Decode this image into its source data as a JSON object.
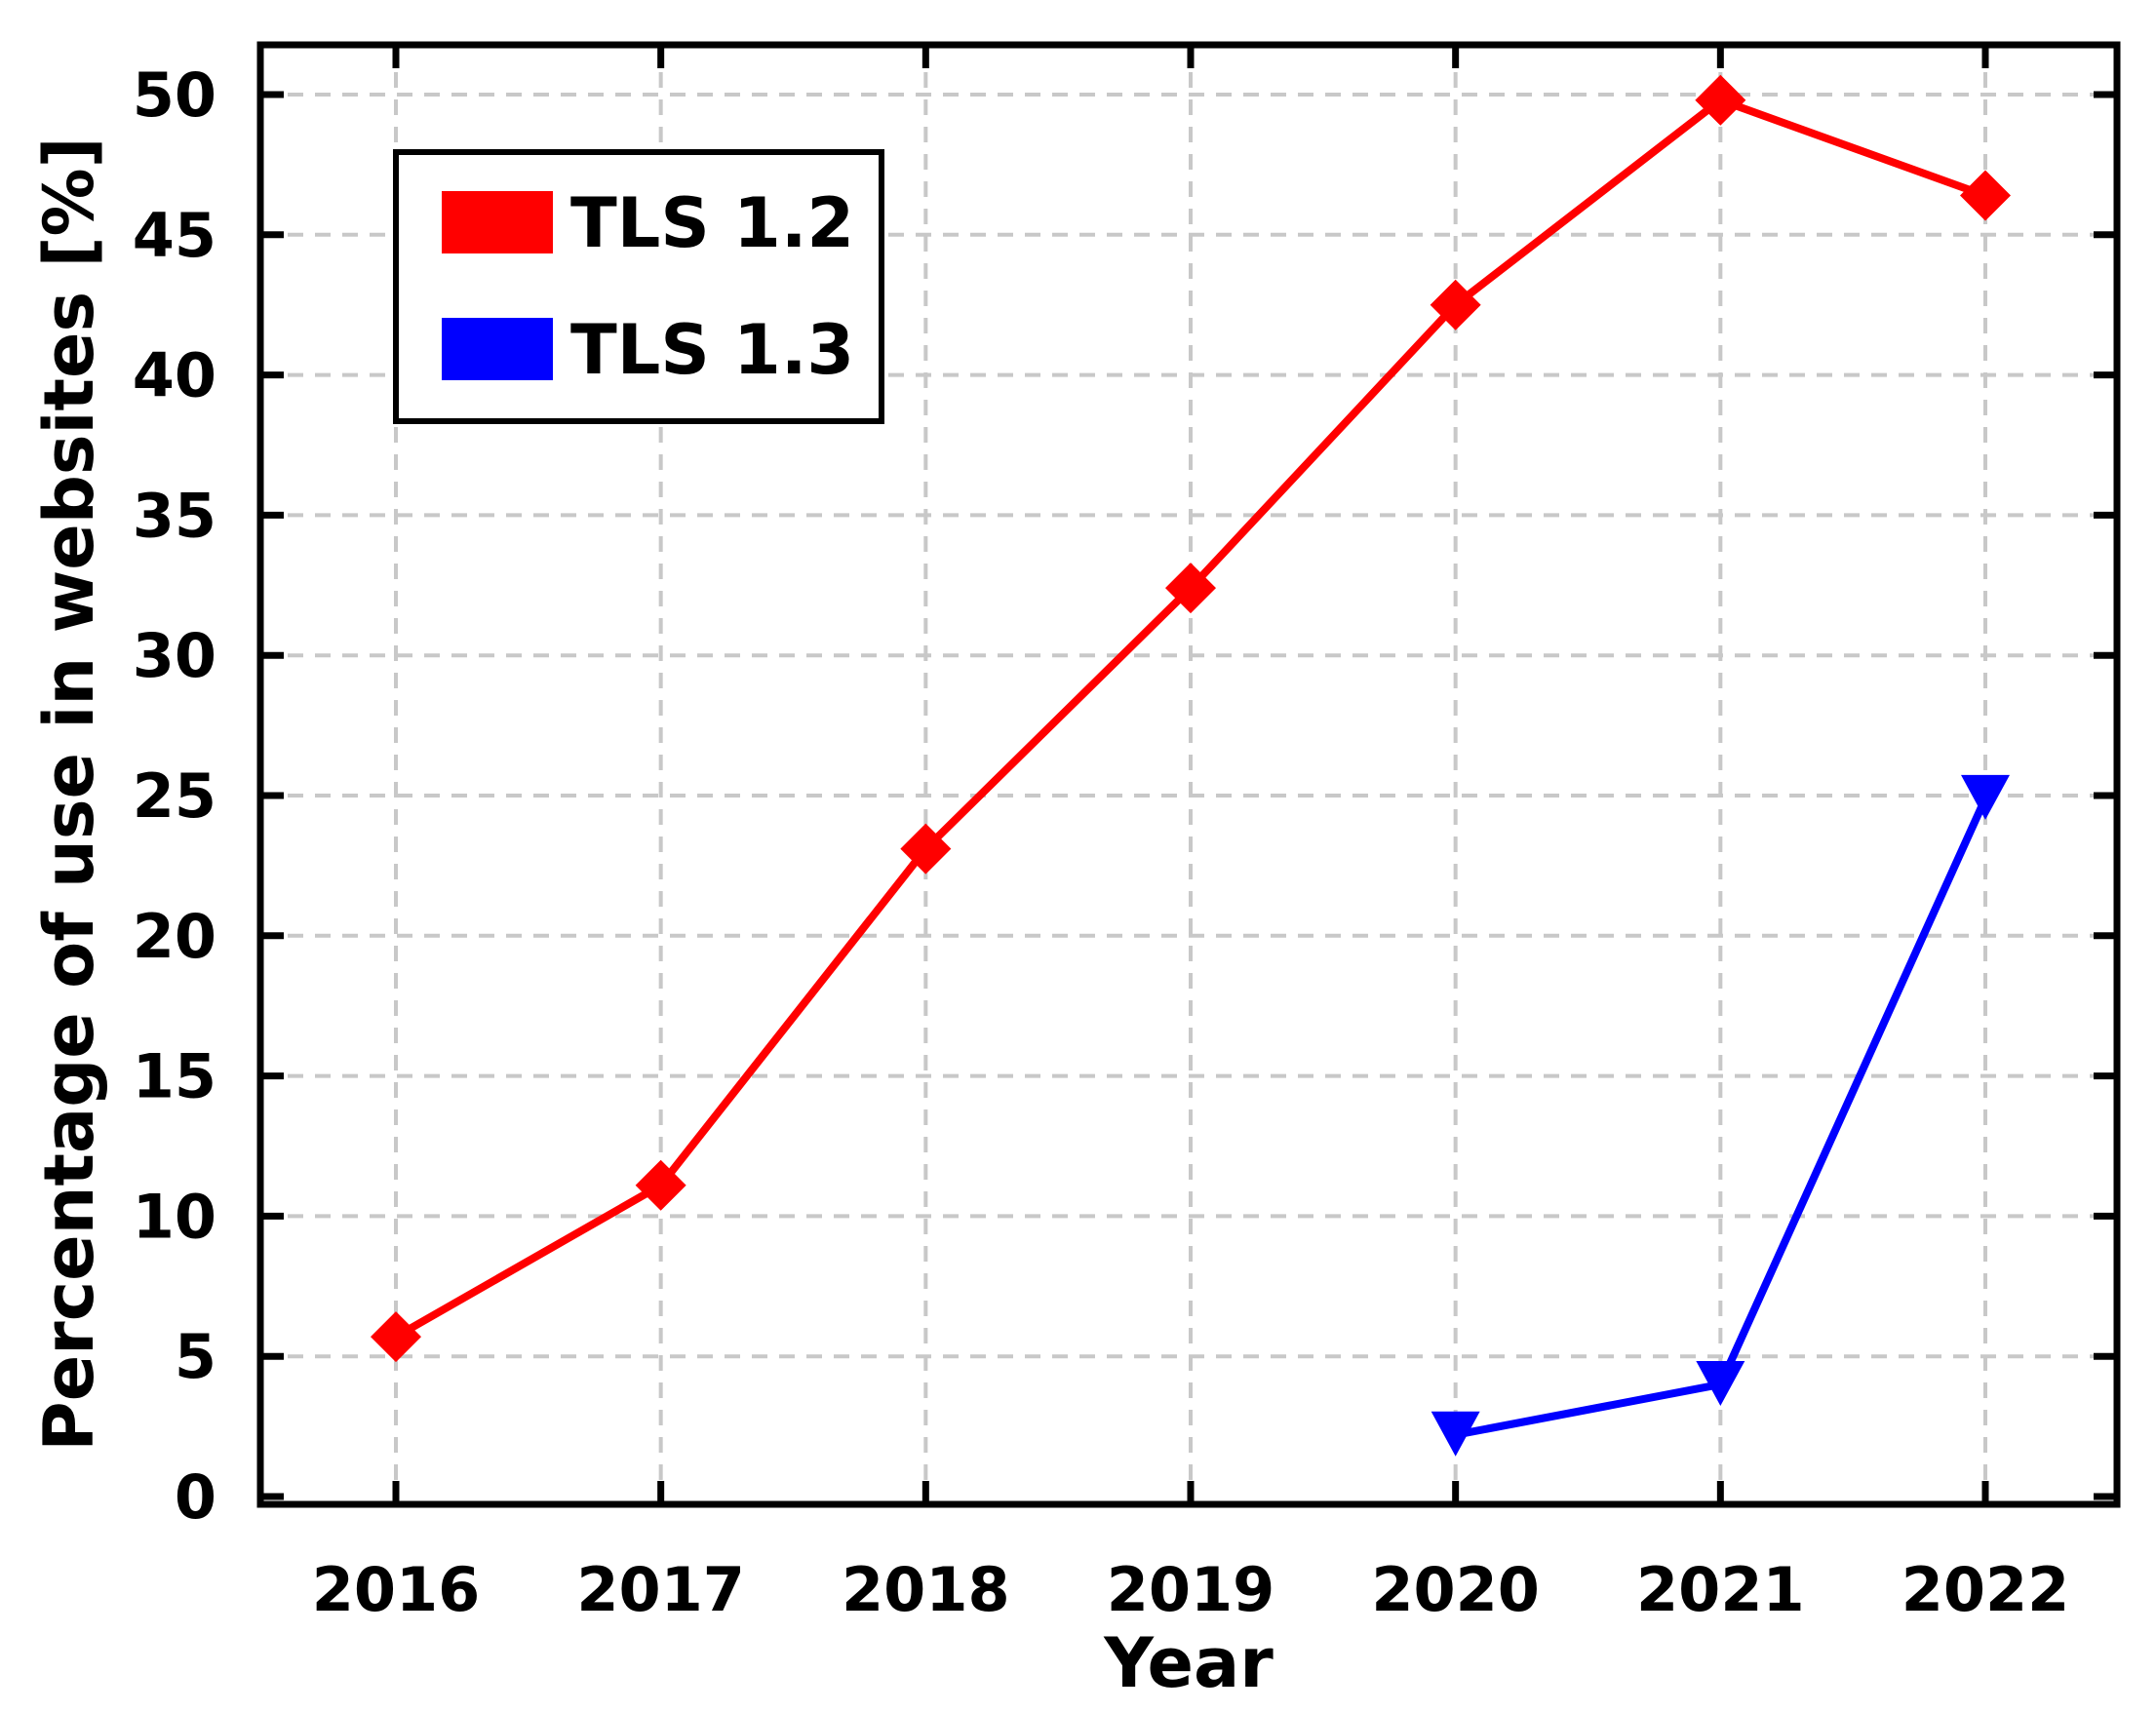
{
  "chart_data": {
    "type": "line",
    "xlabel": "Year",
    "ylabel": "Percentage of use in websites [%]",
    "categories": [
      "2016",
      "2017",
      "2018",
      "2019",
      "2020",
      "2021",
      "2022"
    ],
    "ylim": [
      0,
      50
    ],
    "yticks": [
      "0",
      "5",
      "10",
      "15",
      "20",
      "25",
      "30",
      "35",
      "40",
      "45",
      "50"
    ],
    "grid": true,
    "legend_position": "top-left",
    "series": [
      {
        "name": "TLS 1.2",
        "color": "#ff0000",
        "marker": "diamond",
        "values": [
          5.7,
          11.1,
          23.1,
          32.4,
          42.5,
          49.8,
          46.4
        ]
      },
      {
        "name": "TLS 1.3",
        "color": "#0000ff",
        "marker": "triangle-down",
        "values": [
          null,
          null,
          null,
          null,
          2.2,
          4.0,
          24.9
        ]
      }
    ]
  }
}
